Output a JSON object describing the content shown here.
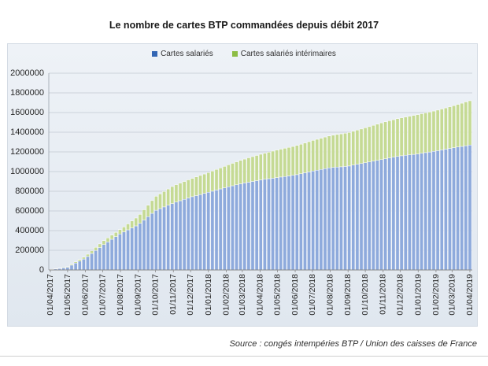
{
  "chart_data": {
    "type": "bar",
    "stacked": true,
    "title": "Le nombre de cartes BTP commandées depuis débit 2017",
    "legend_position": "top",
    "grid": "horizontal",
    "ylim": [
      0,
      2000000
    ],
    "yticks": [
      0,
      200000,
      400000,
      600000,
      800000,
      1000000,
      1200000,
      1400000,
      1600000,
      1800000,
      2000000
    ],
    "xlim": [
      "01/04/2017",
      "01/04/2019"
    ],
    "xtick_labels": [
      "01/04/2017",
      "01/05/2017",
      "01/06/2017",
      "01/07/2017",
      "01/08/2017",
      "01/09/2017",
      "01/10/2017",
      "01/11/2017",
      "01/12/2017",
      "01/01/2018",
      "01/02/2018",
      "01/03/2018",
      "01/04/2018",
      "01/05/2018",
      "01/06/2018",
      "01/07/2018",
      "01/08/2018",
      "01/09/2018",
      "01/10/2018",
      "01/11/2018",
      "01/12/2018",
      "01/01/2019",
      "01/02/2019",
      "01/03/2019",
      "01/04/2019"
    ],
    "x": [
      "03/04/2017",
      "10/04/2017",
      "17/04/2017",
      "24/04/2017",
      "01/05/2017",
      "08/05/2017",
      "15/05/2017",
      "22/05/2017",
      "29/05/2017",
      "05/06/2017",
      "12/06/2017",
      "19/06/2017",
      "26/06/2017",
      "03/07/2017",
      "10/07/2017",
      "17/07/2017",
      "24/07/2017",
      "31/07/2017",
      "07/08/2017",
      "14/08/2017",
      "21/08/2017",
      "28/08/2017",
      "04/09/2017",
      "11/09/2017",
      "18/09/2017",
      "25/09/2017",
      "02/10/2017",
      "09/10/2017",
      "16/10/2017",
      "23/10/2017",
      "30/10/2017",
      "06/11/2017",
      "13/11/2017",
      "20/11/2017",
      "27/11/2017",
      "04/12/2017",
      "11/12/2017",
      "18/12/2017",
      "25/12/2017",
      "01/01/2018",
      "08/01/2018",
      "15/01/2018",
      "22/01/2018",
      "29/01/2018",
      "05/02/2018",
      "12/02/2018",
      "19/02/2018",
      "26/02/2018",
      "05/03/2018",
      "12/03/2018",
      "19/03/2018",
      "26/03/2018",
      "02/04/2018",
      "09/04/2018",
      "16/04/2018",
      "23/04/2018",
      "30/04/2018",
      "07/05/2018",
      "14/05/2018",
      "21/05/2018",
      "28/05/2018",
      "04/06/2018",
      "11/06/2018",
      "18/06/2018",
      "25/06/2018",
      "02/07/2018",
      "09/07/2018",
      "16/07/2018",
      "23/07/2018",
      "30/07/2018",
      "06/08/2018",
      "13/08/2018",
      "20/08/2018",
      "27/08/2018",
      "03/09/2018",
      "10/09/2018",
      "17/09/2018",
      "24/09/2018",
      "01/10/2018",
      "08/10/2018",
      "15/10/2018",
      "22/10/2018",
      "29/10/2018",
      "05/11/2018",
      "12/11/2018",
      "19/11/2018",
      "26/11/2018",
      "03/12/2018",
      "10/12/2018",
      "17/12/2018",
      "24/12/2018",
      "31/12/2018",
      "07/01/2019",
      "14/01/2019",
      "21/01/2019",
      "28/01/2019",
      "04/02/2019",
      "11/02/2019",
      "18/02/2019",
      "25/02/2019",
      "04/03/2019",
      "11/03/2019",
      "18/03/2019",
      "25/03/2019",
      "01/04/2019"
    ],
    "series": [
      {
        "name": "Cartes salariés",
        "color": "#3366b4",
        "bar_fill": "#8eaadc",
        "values": [
          4000,
          10000,
          16000,
          22000,
          28000,
          49000,
          70000,
          90000,
          111000,
          137000,
          168000,
          198000,
          228000,
          258000,
          285000,
          312000,
          339000,
          366000,
          387000,
          408000,
          428000,
          448000,
          475000,
          508000,
          542000,
          576000,
          607000,
          624000,
          641000,
          658000,
          675000,
          690000,
          704000,
          718000,
          732000,
          745000,
          756000,
          767000,
          779000,
          790000,
          801000,
          813000,
          824000,
          835000,
          846000,
          856000,
          866000,
          876000,
          885000,
          892000,
          900000,
          908000,
          916000,
          922000,
          928000,
          933000,
          939000,
          945000,
          950000,
          956000,
          962000,
          969000,
          978000,
          988000,
          997000,
          1006000,
          1014000,
          1022000,
          1030000,
          1038000,
          1042000,
          1046000,
          1049000,
          1053000,
          1057000,
          1066000,
          1074000,
          1082000,
          1090000,
          1098000,
          1106000,
          1114000,
          1122000,
          1130000,
          1138000,
          1146000,
          1154000,
          1161000,
          1166000,
          1170000,
          1175000,
          1179000,
          1186000,
          1193000,
          1199000,
          1206000,
          1213000,
          1221000,
          1228000,
          1236000,
          1243000,
          1250000,
          1256000,
          1263000,
          1270000
        ]
      },
      {
        "name": "Cartes salariés intérimaires",
        "color": "#8dbd45",
        "bar_fill": "#c5da94",
        "values": [
          1000,
          3000,
          4000,
          6000,
          7000,
          10000,
          12000,
          16000,
          19000,
          23000,
          27000,
          32000,
          37000,
          40000,
          41000,
          42000,
          43000,
          44000,
          50000,
          60000,
          70000,
          80000,
          90000,
          104000,
          116000,
          129000,
          142000,
          149000,
          157000,
          165000,
          173000,
          177000,
          179000,
          181000,
          184000,
          186000,
          190000,
          194000,
          196000,
          200000,
          205000,
          209000,
          213000,
          218000,
          223000,
          228000,
          233000,
          238000,
          242000,
          248000,
          252000,
          256000,
          260000,
          265000,
          270000,
          275000,
          280000,
          283000,
          287000,
          290000,
          293000,
          297000,
          300000,
          303000,
          307000,
          311000,
          314000,
          317000,
          321000,
          324000,
          328000,
          331000,
          334000,
          337000,
          341000,
          344000,
          348000,
          351000,
          355000,
          359000,
          364000,
          368000,
          373000,
          376000,
          379000,
          381000,
          384000,
          386000,
          389000,
          393000,
          396000,
          400000,
          402000,
          404000,
          407000,
          409000,
          412000,
          415000,
          419000,
          423000,
          427000,
          433000,
          439000,
          445000,
          450000
        ]
      }
    ]
  },
  "source_note": "Source : congés intempéries BTP / Union des caisses de France"
}
